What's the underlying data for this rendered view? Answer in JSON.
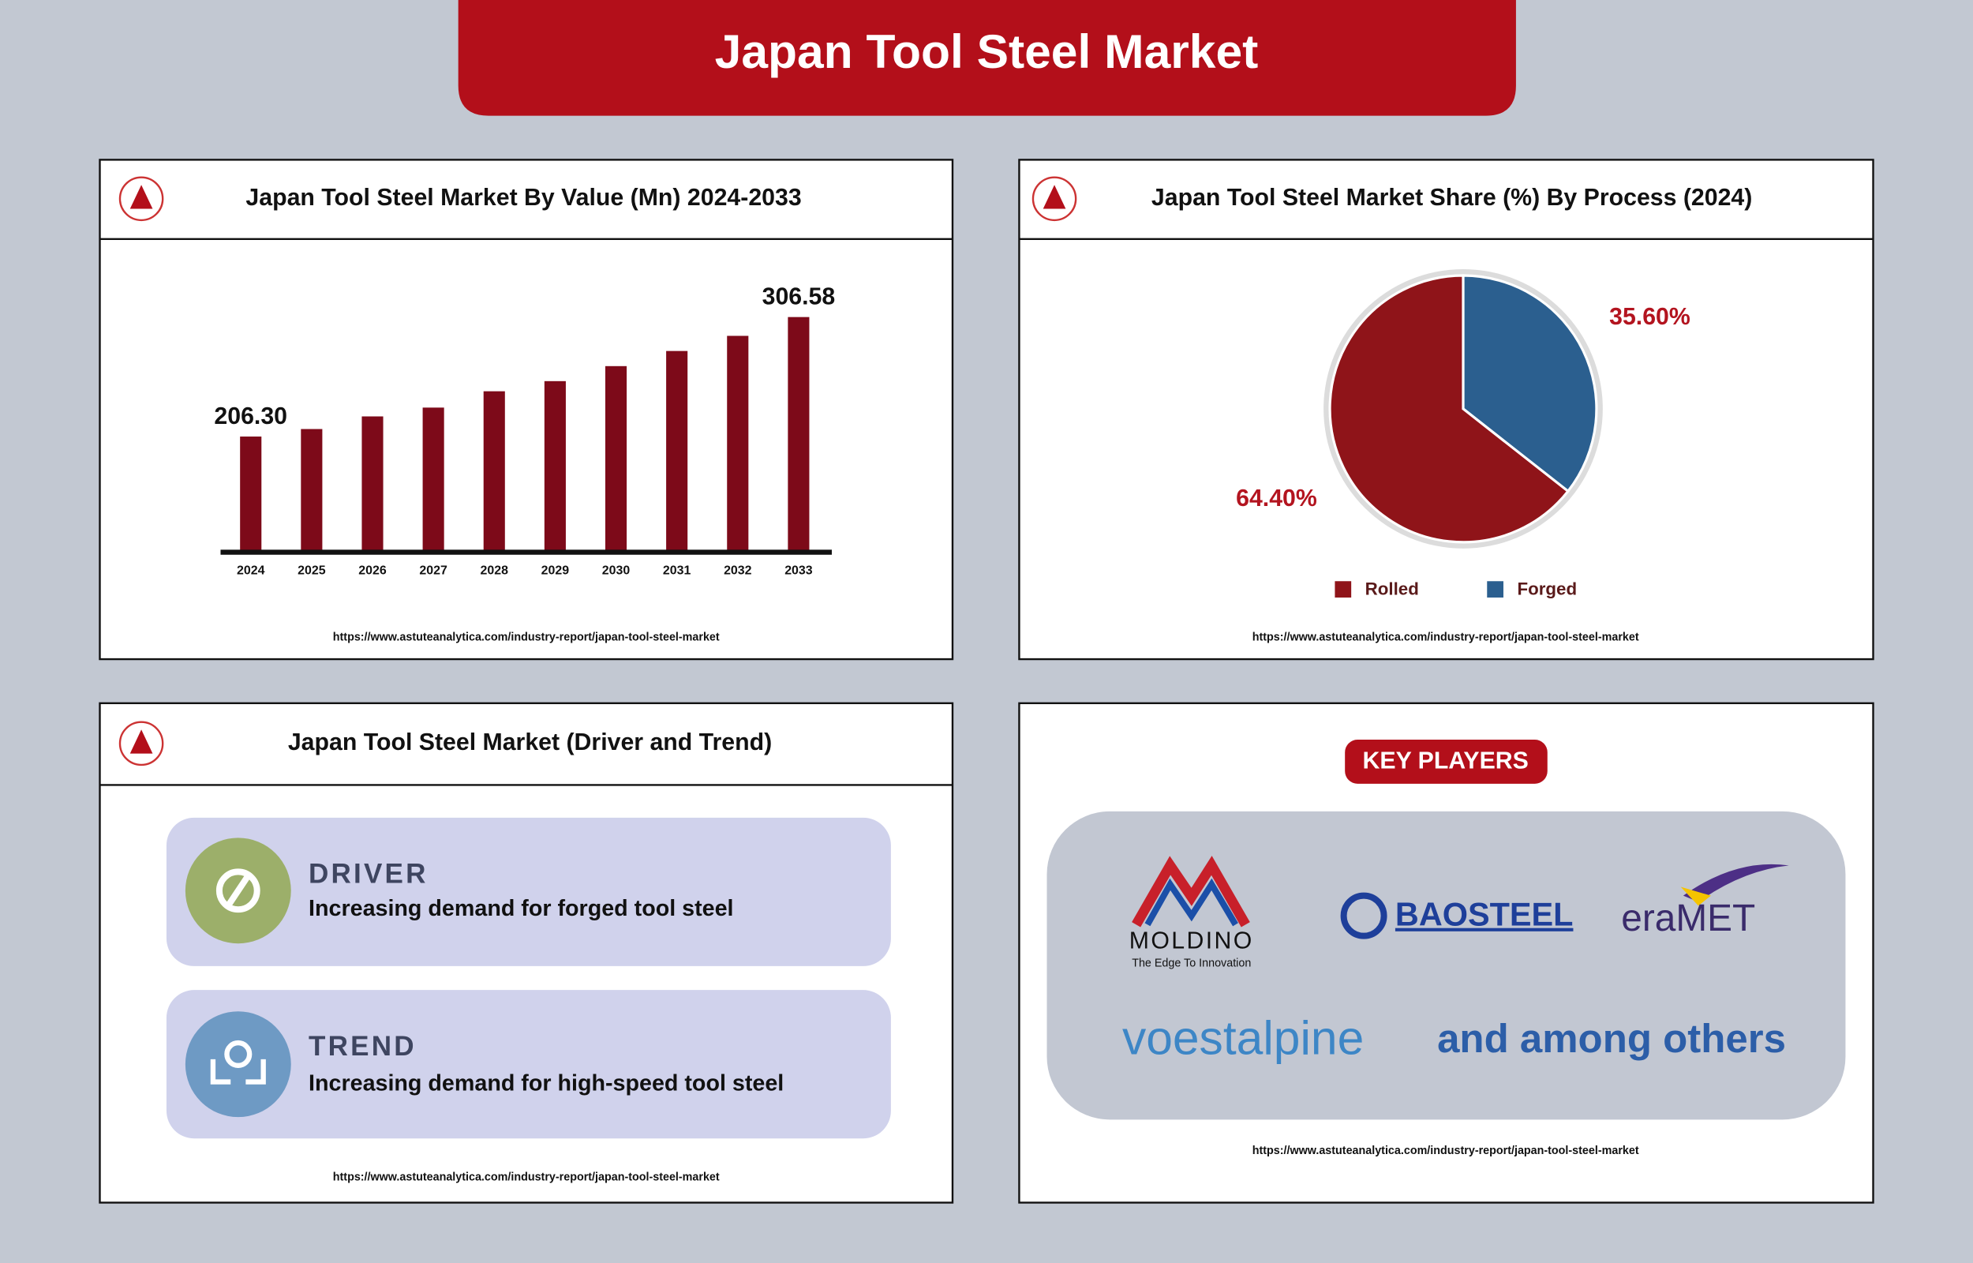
{
  "title": "Japan Tool Steel Market",
  "chart_data": [
    {
      "type": "bar",
      "title": "Japan Tool Steel Market By Value (Mn) 2024-2033",
      "categories": [
        "2024",
        "2025",
        "2026",
        "2027",
        "2028",
        "2029",
        "2030",
        "2031",
        "2032",
        "2033"
      ],
      "values": [
        206.3,
        212.6,
        223.2,
        230.6,
        244.3,
        252.8,
        265.4,
        278.1,
        290.8,
        306.58
      ],
      "value_labels": [
        "206.30",
        null,
        null,
        null,
        null,
        null,
        null,
        null,
        null,
        "306.58"
      ],
      "color": "#7d0a19",
      "ylim": [
        109.2,
        340.4
      ],
      "source": "https://www.astuteanalytica.com/industry-report/japan-tool-steel-market"
    },
    {
      "type": "pie",
      "title": "Japan Tool Steel Market Share (%) By Process (2024)",
      "categories": [
        "Rolled",
        "Forged"
      ],
      "values": [
        64.4,
        35.6
      ],
      "value_labels": [
        "64.40%",
        "35.60%"
      ],
      "colors": [
        "#8f1419",
        "#2b5f8f"
      ],
      "label_color": "#b3141f",
      "legend": "bottom",
      "source": "https://www.astuteanalytica.com/industry-report/japan-tool-steel-market"
    }
  ],
  "drivers_panel": {
    "title": "Japan Tool Steel Market (Driver and Trend)",
    "items": [
      {
        "heading": "DRIVER",
        "text": "Increasing demand for forged tool steel"
      },
      {
        "heading": "TREND",
        "text": "Increasing demand for high-speed tool steel"
      }
    ],
    "source": "https://www.astuteanalytica.com/industry-report/japan-tool-steel-market"
  },
  "key_players_panel": {
    "title": "KEY PLAYERS",
    "logos": [
      {
        "name": "MOLDINO",
        "tagline": "The Edge To Innovation"
      },
      {
        "name": "BAOSTEEL"
      },
      {
        "name": "eraMET"
      },
      {
        "name": "voestalpine"
      }
    ],
    "more": "and among others",
    "source": "https://www.astuteanalytica.com/industry-report/japan-tool-steel-market"
  }
}
